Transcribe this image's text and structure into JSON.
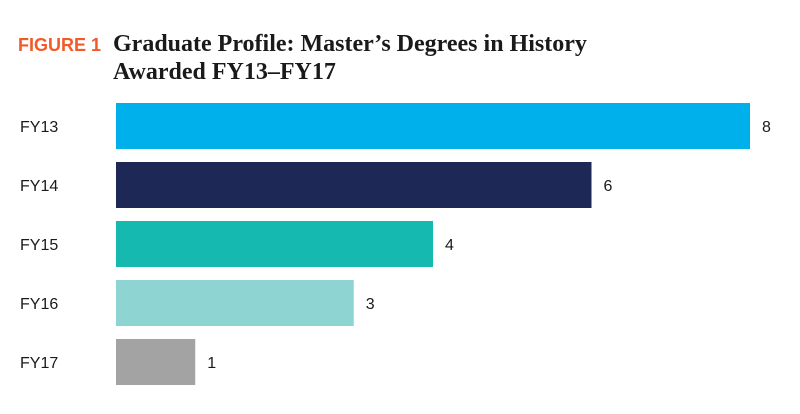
{
  "chart_data": {
    "type": "bar",
    "orientation": "horizontal",
    "figure_label": "FIGURE 1",
    "title": [
      "Graduate Profile: Master’s Degrees in History",
      "Awarded FY13–FY17"
    ],
    "categories": [
      "FY13",
      "FY14",
      "FY15",
      "FY16",
      "FY17"
    ],
    "values": [
      8,
      6,
      4,
      3,
      1
    ],
    "colors": [
      "#00b0ea",
      "#1d2856",
      "#16b9b0",
      "#8dd4d2",
      "#a3a3a3"
    ]
  }
}
